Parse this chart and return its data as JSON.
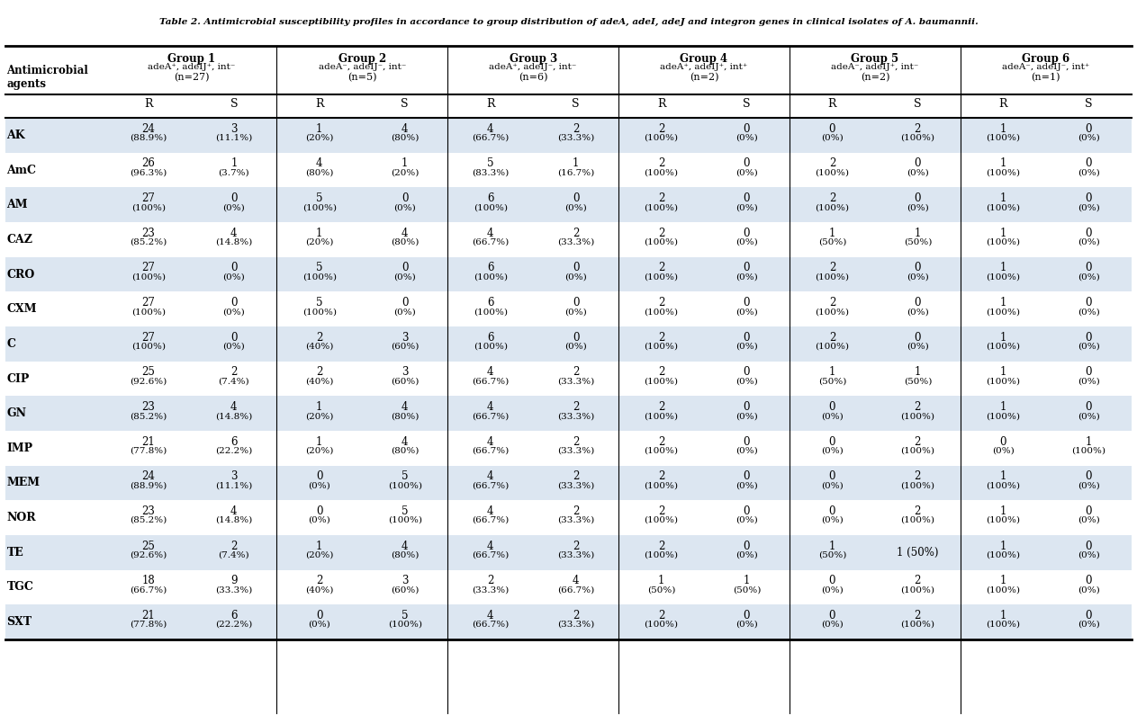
{
  "title": "Table 2. Antimicrobial susceptibility profiles in accordance to group distribution of adeA, adeI, adeJ and integron genes in clinical isolates of A. baumannii.",
  "col_header_groups": [
    "Group 1",
    "Group 2",
    "Group 3",
    "Group 4",
    "Group 5",
    "Group 6"
  ],
  "col_header_sub": [
    "adeA⁺, adeIJ⁺, int⁻\n(n=27)",
    "adeA⁻, adeIJ⁻, int⁻\n(n=5)",
    "adeA⁺, adeIJ⁻, int⁻\n(n=6)",
    "adeA⁺, adeIJ⁺, int⁺\n(n=2)",
    "adeA⁻, adeIJ⁺, int⁻\n(n=2)",
    "adeA⁻, adeIJ⁻, int⁺\n(n=1)"
  ],
  "rs_headers": [
    "R",
    "S",
    "R",
    "S",
    "R",
    "S",
    "R",
    "S",
    "R",
    "S",
    "R",
    "S"
  ],
  "row_labels": [
    "AK",
    "AmC",
    "AM",
    "CAZ",
    "CRO",
    "CXM",
    "C",
    "CIP",
    "GN",
    "IMP",
    "MEM",
    "NOR",
    "TE",
    "TGC",
    "SXT"
  ],
  "rows": [
    [
      "24\n(88.9%)",
      "3\n(11.1%)",
      "1\n(20%)",
      "4\n(80%)",
      "4\n(66.7%)",
      "2\n(33.3%)",
      "2\n(100%)",
      "0\n(0%)",
      "0\n(0%)",
      "2\n(100%)",
      "1\n(100%)",
      "0\n(0%)"
    ],
    [
      "26\n(96.3%)",
      "1\n(3.7%)",
      "4\n(80%)",
      "1\n(20%)",
      "5\n(83.3%)",
      "1\n(16.7%)",
      "2\n(100%)",
      "0\n(0%)",
      "2\n(100%)",
      "0\n(0%)",
      "1\n(100%)",
      "0\n(0%)"
    ],
    [
      "27\n(100%)",
      "0\n(0%)",
      "5\n(100%)",
      "0\n(0%)",
      "6\n(100%)",
      "0\n(0%)",
      "2\n(100%)",
      "0\n(0%)",
      "2\n(100%)",
      "0\n(0%)",
      "1\n(100%)",
      "0\n(0%)"
    ],
    [
      "23\n(85.2%)",
      "4\n(14.8%)",
      "1\n(20%)",
      "4\n(80%)",
      "4\n(66.7%)",
      "2\n(33.3%)",
      "2\n(100%)",
      "0\n(0%)",
      "1\n(50%)",
      "1\n(50%)",
      "1\n(100%)",
      "0\n(0%)"
    ],
    [
      "27\n(100%)",
      "0\n(0%)",
      "5\n(100%)",
      "0\n(0%)",
      "6\n(100%)",
      "0\n(0%)",
      "2\n(100%)",
      "0\n(0%)",
      "2\n(100%)",
      "0\n(0%)",
      "1\n(100%)",
      "0\n(0%)"
    ],
    [
      "27\n(100%)",
      "0\n(0%)",
      "5\n(100%)",
      "0\n(0%)",
      "6\n(100%)",
      "0\n(0%)",
      "2\n(100%)",
      "0\n(0%)",
      "2\n(100%)",
      "0\n(0%)",
      "1\n(100%)",
      "0\n(0%)"
    ],
    [
      "27\n(100%)",
      "0\n(0%)",
      "2\n(40%)",
      "3\n(60%)",
      "6\n(100%)",
      "0\n(0%)",
      "2\n(100%)",
      "0\n(0%)",
      "2\n(100%)",
      "0\n(0%)",
      "1\n(100%)",
      "0\n(0%)"
    ],
    [
      "25\n(92.6%)",
      "2\n(7.4%)",
      "2\n(40%)",
      "3\n(60%)",
      "4\n(66.7%)",
      "2\n(33.3%)",
      "2\n(100%)",
      "0\n(0%)",
      "1\n(50%)",
      "1\n(50%)",
      "1\n(100%)",
      "0\n(0%)"
    ],
    [
      "23\n(85.2%)",
      "4\n(14.8%)",
      "1\n(20%)",
      "4\n(80%)",
      "4\n(66.7%)",
      "2\n(33.3%)",
      "2\n(100%)",
      "0\n(0%)",
      "0\n(0%)",
      "2\n(100%)",
      "1\n(100%)",
      "0\n(0%)"
    ],
    [
      "21\n(77.8%)",
      "6\n(22.2%)",
      "1\n(20%)",
      "4\n(80%)",
      "4\n(66.7%)",
      "2\n(33.3%)",
      "2\n(100%)",
      "0\n(0%)",
      "0\n(0%)",
      "2\n(100%)",
      "0\n(0%)",
      "1\n(100%)"
    ],
    [
      "24\n(88.9%)",
      "3\n(11.1%)",
      "0\n(0%)",
      "5\n(100%)",
      "4\n(66.7%)",
      "2\n(33.3%)",
      "2\n(100%)",
      "0\n(0%)",
      "0\n(0%)",
      "2\n(100%)",
      "1\n(100%)",
      "0\n(0%)"
    ],
    [
      "23\n(85.2%)",
      "4\n(14.8%)",
      "0\n(0%)",
      "5\n(100%)",
      "4\n(66.7%)",
      "2\n(33.3%)",
      "2\n(100%)",
      "0\n(0%)",
      "0\n(0%)",
      "2\n(100%)",
      "1\n(100%)",
      "0\n(0%)"
    ],
    [
      "25\n(92.6%)",
      "2\n(7.4%)",
      "1\n(20%)",
      "4\n(80%)",
      "4\n(66.7%)",
      "2\n(33.3%)",
      "2\n(100%)",
      "0\n(0%)",
      "1\n(50%)",
      "1 (50%)",
      "1\n(100%)",
      "0\n(0%)"
    ],
    [
      "18\n(66.7%)",
      "9\n(33.3%)",
      "2\n(40%)",
      "3\n(60%)",
      "2\n(33.3%)",
      "4\n(66.7%)",
      "1\n(50%)",
      "1\n(50%)",
      "0\n(0%)",
      "2\n(100%)",
      "1\n(100%)",
      "0\n(0%)"
    ],
    [
      "21\n(77.8%)",
      "6\n(22.2%)",
      "0\n(0%)",
      "5\n(100%)",
      "4\n(66.7%)",
      "2\n(33.3%)",
      "2\n(100%)",
      "0\n(0%)",
      "0\n(0%)",
      "2\n(100%)",
      "1\n(100%)",
      "0\n(0%)"
    ]
  ],
  "bg_color_even": "#dce6f1",
  "bg_color_odd": "#ffffff",
  "header_bg": "#ffffff",
  "text_color": "#000000",
  "title_color": "#000000",
  "border_color": "#000000"
}
